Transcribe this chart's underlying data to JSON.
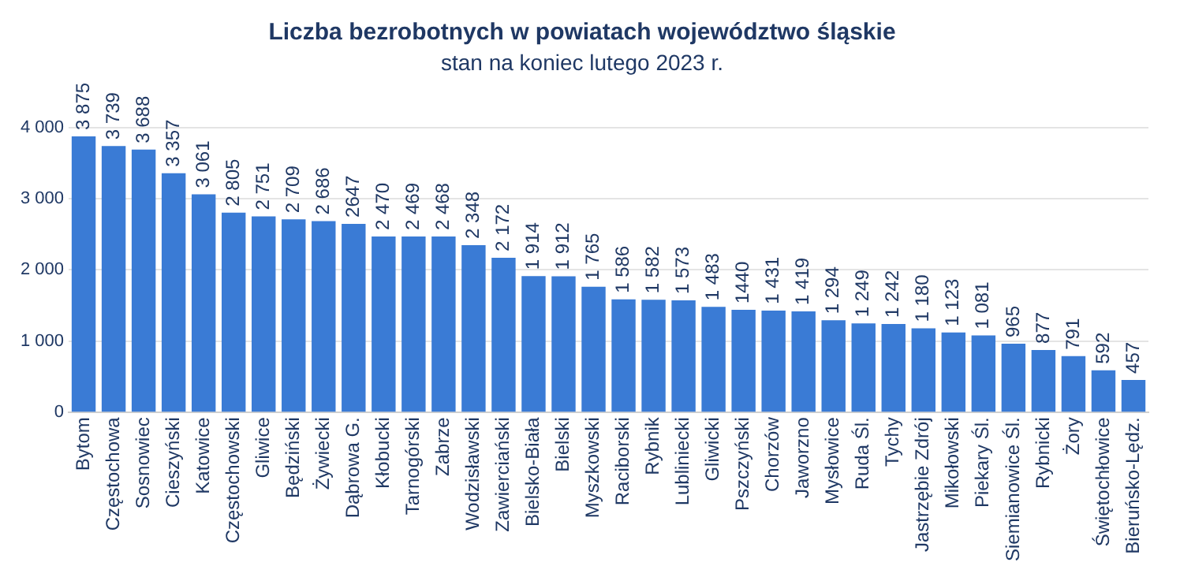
{
  "chart_data": {
    "type": "bar",
    "title": "Liczba bezrobotnych w powiatach województwo śląskie",
    "subtitle": "stan na koniec lutego 2023 r.",
    "categories": [
      "Bytom",
      "Częstochowa",
      "Sosnowiec",
      "Cieszyński",
      "Katowice",
      "Częstochowski",
      "Gliwice",
      "Będziński",
      "Żywiecki",
      "Dąbrowa G.",
      "Kłobucki",
      "Tarnogórski",
      "Zabrze",
      "Wodzisławski",
      "Zawierciański",
      "Bielsko-Biała",
      "Bielski",
      "Myszkowski",
      "Raciborski",
      "Rybnik",
      "Lubliniecki",
      "Gliwicki",
      "Pszczyński",
      "Chorzów",
      "Jaworzno",
      "Mysłowice",
      "Ruda Śl.",
      "Tychy",
      "Jastrzębie Zdrój",
      "Mikołowski",
      "Piekary Śl.",
      "Siemianowice Śl.",
      "Rybnicki",
      "Żory",
      "Świętochłowice",
      "Bieruńsko-Lędz."
    ],
    "values": [
      3875,
      3739,
      3688,
      3357,
      3061,
      2805,
      2751,
      2709,
      2686,
      2647,
      2470,
      2469,
      2468,
      2348,
      2172,
      1914,
      1912,
      1765,
      1586,
      1582,
      1573,
      1483,
      1440,
      1431,
      1419,
      1294,
      1249,
      1242,
      1180,
      1123,
      1081,
      965,
      877,
      791,
      592,
      457
    ],
    "value_labels": [
      "3 875",
      "3 739",
      "3 688",
      "3 357",
      "3 061",
      "2 805",
      "2 751",
      "2 709",
      "2 686",
      "2647",
      "2 470",
      "2 469",
      "2 468",
      "2 348",
      "2 172",
      "1 914",
      "1 912",
      "1 765",
      "1 586",
      "1 582",
      "1 573",
      "1 483",
      "1440",
      "1 431",
      "1 419",
      "1 294",
      "1 249",
      "1 242",
      "1 180",
      "1 123",
      "1 081",
      "965",
      "877",
      "791",
      "592",
      "457"
    ],
    "color": "#3a7bd5",
    "ylim": [
      0,
      4000
    ],
    "yticks": [
      {
        "value": 0,
        "label": "0"
      },
      {
        "value": 1000,
        "label": "1 000"
      },
      {
        "value": 2000,
        "label": "2 000"
      },
      {
        "value": 3000,
        "label": "3 000"
      },
      {
        "value": 4000,
        "label": "4 000"
      }
    ],
    "grid": "y",
    "legend": false
  }
}
